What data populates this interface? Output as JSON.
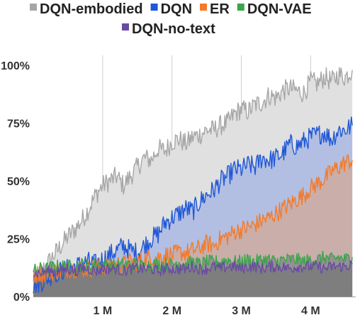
{
  "chart_data": {
    "type": "area",
    "x_unit": "steps",
    "xlim": [
      0,
      4.65
    ],
    "ylim": [
      0,
      100
    ],
    "x_ticks": [
      {
        "value": 1,
        "label": "1 M"
      },
      {
        "value": 2,
        "label": "2 M"
      },
      {
        "value": 3,
        "label": "3 M"
      },
      {
        "value": 4,
        "label": "4 M"
      }
    ],
    "y_ticks": [
      {
        "value": 0,
        "label": "0%"
      },
      {
        "value": 25,
        "label": "25%"
      },
      {
        "value": 50,
        "label": "50%"
      },
      {
        "value": 75,
        "label": "75%"
      },
      {
        "value": 100,
        "label": "100%"
      }
    ],
    "grid": "vertical",
    "legend_position": "top",
    "legend_rows": [
      [
        0,
        1,
        2,
        3
      ],
      [
        4
      ]
    ],
    "series": [
      {
        "name": "DQN-embodied",
        "color": "#a6a6a6",
        "fill": "#e0e0e0",
        "x": [
          0,
          0.1,
          0.2,
          0.3,
          0.4,
          0.5,
          0.6,
          0.7,
          0.8,
          0.9,
          1.0,
          1.1,
          1.2,
          1.3,
          1.4,
          1.5,
          1.6,
          1.7,
          1.8,
          1.9,
          2.0,
          2.1,
          2.2,
          2.3,
          2.4,
          2.5,
          2.6,
          2.7,
          2.8,
          2.9,
          3.0,
          3.1,
          3.2,
          3.3,
          3.4,
          3.5,
          3.6,
          3.7,
          3.8,
          3.9,
          4.0,
          4.1,
          4.2,
          4.3,
          4.4,
          4.5,
          4.6
        ],
        "values": [
          6,
          10,
          14,
          18,
          22,
          26,
          29,
          33,
          38,
          44,
          48,
          50,
          52,
          48,
          52,
          56,
          60,
          59,
          64,
          63,
          67,
          68,
          66,
          69,
          70,
          72,
          72,
          74,
          75,
          79,
          81,
          80,
          83,
          84,
          87,
          86,
          89,
          90,
          89,
          88,
          93,
          92,
          95,
          93,
          96,
          95,
          98
        ]
      },
      {
        "name": "DQN",
        "color": "#1f57d6",
        "fill": "#a9b9e2",
        "x": [
          0,
          0.1,
          0.2,
          0.3,
          0.4,
          0.5,
          0.6,
          0.7,
          0.8,
          0.9,
          1.0,
          1.1,
          1.2,
          1.3,
          1.4,
          1.5,
          1.6,
          1.7,
          1.8,
          1.9,
          2.0,
          2.1,
          2.2,
          2.3,
          2.4,
          2.5,
          2.6,
          2.7,
          2.8,
          2.9,
          3.0,
          3.1,
          3.2,
          3.3,
          3.4,
          3.5,
          3.6,
          3.7,
          3.8,
          3.9,
          4.0,
          4.1,
          4.2,
          4.3,
          4.4,
          4.5,
          4.6
        ],
        "values": [
          5,
          6,
          8,
          10,
          11,
          12,
          13,
          14,
          15,
          14,
          16,
          18,
          20,
          22,
          20,
          19,
          22,
          25,
          27,
          32,
          34,
          36,
          38,
          37,
          41,
          44,
          46,
          50,
          52,
          55,
          55,
          57,
          56,
          60,
          59,
          60,
          62,
          66,
          65,
          67,
          69,
          70,
          71,
          68,
          72,
          72,
          74
        ]
      },
      {
        "name": "ER",
        "color": "#f47a2a",
        "fill": "#cdaaa0",
        "x": [
          0,
          0.1,
          0.2,
          0.3,
          0.4,
          0.5,
          0.6,
          0.7,
          0.8,
          0.9,
          1.0,
          1.1,
          1.2,
          1.3,
          1.4,
          1.5,
          1.6,
          1.7,
          1.8,
          1.9,
          2.0,
          2.1,
          2.2,
          2.3,
          2.4,
          2.5,
          2.6,
          2.7,
          2.8,
          2.9,
          3.0,
          3.1,
          3.2,
          3.3,
          3.4,
          3.5,
          3.6,
          3.7,
          3.8,
          3.9,
          4.0,
          4.1,
          4.2,
          4.3,
          4.4,
          4.5,
          4.6
        ],
        "values": [
          9,
          10,
          10,
          11,
          11,
          12,
          12,
          12,
          12,
          13,
          13,
          13,
          14,
          14,
          15,
          15,
          16,
          17,
          17,
          18,
          18,
          19,
          19,
          20,
          21,
          23,
          22,
          25,
          26,
          28,
          29,
          30,
          31,
          33,
          34,
          36,
          38,
          40,
          42,
          44,
          47,
          49,
          51,
          54,
          56,
          58,
          59
        ]
      },
      {
        "name": "DQN-VAE",
        "color": "#3aa54a",
        "fill": "#8e8e8e",
        "x": [
          0,
          0.1,
          0.2,
          0.3,
          0.4,
          0.5,
          0.6,
          0.7,
          0.8,
          0.9,
          1.0,
          1.1,
          1.2,
          1.3,
          1.4,
          1.5,
          1.6,
          1.7,
          1.8,
          1.9,
          2.0,
          2.1,
          2.2,
          2.3,
          2.4,
          2.5,
          2.6,
          2.7,
          2.8,
          2.9,
          3.0,
          3.1,
          3.2,
          3.3,
          3.4,
          3.5,
          3.6,
          3.7,
          3.8,
          3.9,
          4.0,
          4.1,
          4.2,
          4.3,
          4.4,
          4.5,
          4.6
        ],
        "values": [
          11,
          12,
          12,
          13,
          13,
          13,
          13,
          14,
          13,
          14,
          14,
          14,
          13,
          14,
          14,
          14,
          13,
          14,
          14,
          14,
          14,
          15,
          14,
          15,
          14,
          15,
          15,
          15,
          16,
          15,
          15,
          16,
          15,
          16,
          16,
          15,
          16,
          16,
          16,
          15,
          16,
          16,
          17,
          16,
          17,
          16,
          17
        ]
      },
      {
        "name": "DQN-no-text",
        "color": "#6a4aa5",
        "fill": "#7a7a7a",
        "x": [
          0,
          0.1,
          0.2,
          0.3,
          0.4,
          0.5,
          0.6,
          0.7,
          0.8,
          0.9,
          1.0,
          1.1,
          1.2,
          1.3,
          1.4,
          1.5,
          1.6,
          1.7,
          1.8,
          1.9,
          2.0,
          2.1,
          2.2,
          2.3,
          2.4,
          2.5,
          2.6,
          2.7,
          2.8,
          2.9,
          3.0,
          3.1,
          3.2,
          3.3,
          3.4,
          3.5,
          3.6,
          3.7,
          3.8,
          3.9,
          4.0,
          4.1,
          4.2,
          4.3,
          4.4,
          4.5,
          4.6
        ],
        "values": [
          10,
          10,
          11,
          11,
          11,
          12,
          11,
          12,
          12,
          11,
          12,
          12,
          12,
          11,
          12,
          12,
          12,
          12,
          11,
          12,
          12,
          12,
          12,
          13,
          12,
          12,
          13,
          12,
          13,
          13,
          12,
          13,
          13,
          12,
          13,
          13,
          13,
          12,
          13,
          13,
          13,
          13,
          12,
          13,
          13,
          13,
          14
        ]
      }
    ]
  }
}
